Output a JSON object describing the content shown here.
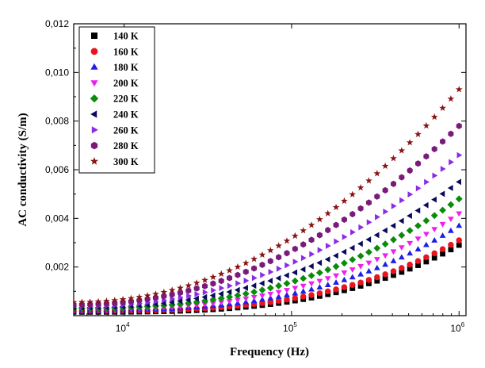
{
  "chart_data": {
    "type": "scatter",
    "title": "",
    "xlabel": "Frequency (Hz)",
    "ylabel": "AC conductivity (S/m)",
    "xscale": "log",
    "xlim": [
      5000,
      1100000
    ],
    "ylim": [
      0,
      0.012
    ],
    "grid": false,
    "legend_position": "top-left",
    "x_ticks": [
      {
        "value": 10000,
        "base": "10",
        "exp": "4"
      },
      {
        "value": 100000,
        "base": "10",
        "exp": "5"
      },
      {
        "value": 1000000,
        "base": "10",
        "exp": "6"
      }
    ],
    "y_ticks": [
      {
        "value": 0.002,
        "label": "0,002"
      },
      {
        "value": 0.004,
        "label": "0,004"
      },
      {
        "value": 0.006,
        "label": "0,006"
      },
      {
        "value": 0.008,
        "label": "0,008"
      },
      {
        "value": 0.01,
        "label": "0,010"
      },
      {
        "value": 0.012,
        "label": "0,012"
      }
    ],
    "n_points": 48,
    "x_start": 5000,
    "x_end": 1000000,
    "series": [
      {
        "name": "140 K",
        "marker": "square",
        "color": "#000000",
        "y_start": 0.00015,
        "y_end": 0.0029,
        "curve_exponent": 3.2
      },
      {
        "name": "160 K",
        "marker": "circle",
        "color": "#e8141e",
        "y_start": 0.0002,
        "y_end": 0.0031,
        "curve_exponent": 3.1
      },
      {
        "name": "180 K",
        "marker": "triangle-up",
        "color": "#1e1ee6",
        "y_start": 0.00022,
        "y_end": 0.0037,
        "curve_exponent": 2.9
      },
      {
        "name": "200 K",
        "marker": "triangle-down",
        "color": "#f01ef0",
        "y_start": 0.00025,
        "y_end": 0.0042,
        "curve_exponent": 2.7
      },
      {
        "name": "220 K",
        "marker": "diamond",
        "color": "#0a8c0a",
        "y_start": 0.0003,
        "y_end": 0.0048,
        "curve_exponent": 2.5
      },
      {
        "name": "240 K",
        "marker": "triangle-left",
        "color": "#0a0a5a",
        "y_start": 0.00033,
        "y_end": 0.0055,
        "curve_exponent": 2.3
      },
      {
        "name": "260 K",
        "marker": "triangle-right",
        "color": "#8c2ae6",
        "y_start": 0.00038,
        "y_end": 0.0066,
        "curve_exponent": 2.2
      },
      {
        "name": "280 K",
        "marker": "hexagon",
        "color": "#7a1a7a",
        "y_start": 0.00045,
        "y_end": 0.0078,
        "curve_exponent": 2.1
      },
      {
        "name": "300 K",
        "marker": "star",
        "color": "#8a1414",
        "y_start": 0.00055,
        "y_end": 0.0093,
        "curve_exponent": 2.1
      }
    ]
  }
}
